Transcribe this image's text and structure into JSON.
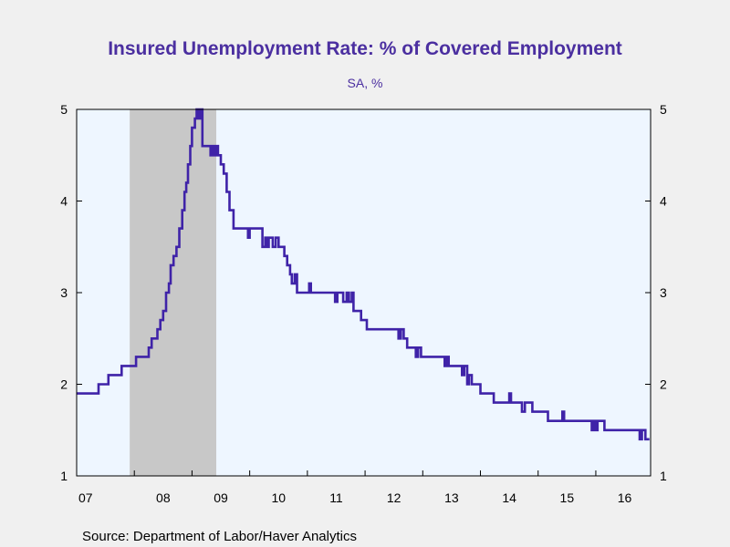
{
  "chart_data": {
    "type": "line",
    "title": "Insured Unemployment Rate: % of Covered Employment",
    "subtitle": "SA, %",
    "source": "Source:  Department of Labor/Haver Analytics",
    "colors": {
      "line": "#3f23a8",
      "plot_background": "#eef6ff",
      "recession": "#c8c8c8",
      "title": "#4b2fa0"
    },
    "xlim": [
      2007.0,
      2016.95
    ],
    "ylim": [
      1,
      5
    ],
    "x_ticks": [
      {
        "value": 2007,
        "label": "07"
      },
      {
        "value": 2008,
        "label": "08"
      },
      {
        "value": 2009,
        "label": "09"
      },
      {
        "value": 2010,
        "label": "10"
      },
      {
        "value": 2011,
        "label": "11"
      },
      {
        "value": 2012,
        "label": "12"
      },
      {
        "value": 2013,
        "label": "13"
      },
      {
        "value": 2014,
        "label": "14"
      },
      {
        "value": 2015,
        "label": "15"
      },
      {
        "value": 2016,
        "label": "16"
      }
    ],
    "y_ticks": [
      1,
      2,
      3,
      4,
      5
    ],
    "y_axis_sides": [
      "left",
      "right"
    ],
    "recession_shading": [
      {
        "start": 2007.92,
        "end": 2009.42
      }
    ],
    "series": [
      {
        "name": "",
        "points": [
          [
            2007.0,
            1.9
          ],
          [
            2007.35,
            1.9
          ],
          [
            2007.38,
            2.0
          ],
          [
            2007.52,
            2.0
          ],
          [
            2007.55,
            2.1
          ],
          [
            2007.75,
            2.1
          ],
          [
            2007.78,
            2.2
          ],
          [
            2008.0,
            2.2
          ],
          [
            2008.03,
            2.3
          ],
          [
            2008.2,
            2.3
          ],
          [
            2008.25,
            2.4
          ],
          [
            2008.3,
            2.5
          ],
          [
            2008.35,
            2.5
          ],
          [
            2008.4,
            2.6
          ],
          [
            2008.45,
            2.7
          ],
          [
            2008.5,
            2.8
          ],
          [
            2008.55,
            3.0
          ],
          [
            2008.6,
            3.1
          ],
          [
            2008.63,
            3.3
          ],
          [
            2008.68,
            3.4
          ],
          [
            2008.73,
            3.5
          ],
          [
            2008.78,
            3.7
          ],
          [
            2008.83,
            3.9
          ],
          [
            2008.87,
            4.1
          ],
          [
            2008.9,
            4.2
          ],
          [
            2008.93,
            4.4
          ],
          [
            2008.97,
            4.6
          ],
          [
            2009.0,
            4.8
          ],
          [
            2009.05,
            4.9
          ],
          [
            2009.08,
            5.0
          ],
          [
            2009.12,
            4.9
          ],
          [
            2009.15,
            5.0
          ],
          [
            2009.18,
            4.6
          ],
          [
            2009.3,
            4.6
          ],
          [
            2009.32,
            4.5
          ],
          [
            2009.35,
            4.6
          ],
          [
            2009.38,
            4.5
          ],
          [
            2009.42,
            4.6
          ],
          [
            2009.45,
            4.5
          ],
          [
            2009.5,
            4.4
          ],
          [
            2009.55,
            4.3
          ],
          [
            2009.6,
            4.1
          ],
          [
            2009.65,
            3.9
          ],
          [
            2009.72,
            3.7
          ],
          [
            2009.95,
            3.7
          ],
          [
            2009.97,
            3.6
          ],
          [
            2010.0,
            3.7
          ],
          [
            2010.2,
            3.7
          ],
          [
            2010.22,
            3.5
          ],
          [
            2010.27,
            3.6
          ],
          [
            2010.3,
            3.5
          ],
          [
            2010.33,
            3.6
          ],
          [
            2010.4,
            3.5
          ],
          [
            2010.45,
            3.6
          ],
          [
            2010.5,
            3.5
          ],
          [
            2010.55,
            3.5
          ],
          [
            2010.6,
            3.4
          ],
          [
            2010.65,
            3.3
          ],
          [
            2010.7,
            3.2
          ],
          [
            2010.73,
            3.1
          ],
          [
            2010.78,
            3.2
          ],
          [
            2010.82,
            3.0
          ],
          [
            2011.0,
            3.0
          ],
          [
            2011.03,
            3.1
          ],
          [
            2011.06,
            3.0
          ],
          [
            2011.45,
            3.0
          ],
          [
            2011.48,
            2.9
          ],
          [
            2011.52,
            3.0
          ],
          [
            2011.6,
            3.0
          ],
          [
            2011.62,
            2.9
          ],
          [
            2011.68,
            3.0
          ],
          [
            2011.72,
            2.9
          ],
          [
            2011.77,
            3.0
          ],
          [
            2011.8,
            2.8
          ],
          [
            2011.9,
            2.8
          ],
          [
            2011.93,
            2.7
          ],
          [
            2012.0,
            2.7
          ],
          [
            2012.03,
            2.6
          ],
          [
            2012.55,
            2.6
          ],
          [
            2012.58,
            2.5
          ],
          [
            2012.62,
            2.6
          ],
          [
            2012.67,
            2.5
          ],
          [
            2012.7,
            2.5
          ],
          [
            2012.73,
            2.4
          ],
          [
            2012.85,
            2.4
          ],
          [
            2012.88,
            2.3
          ],
          [
            2012.92,
            2.4
          ],
          [
            2012.97,
            2.3
          ],
          [
            2013.35,
            2.3
          ],
          [
            2013.38,
            2.2
          ],
          [
            2013.42,
            2.3
          ],
          [
            2013.45,
            2.2
          ],
          [
            2013.65,
            2.2
          ],
          [
            2013.68,
            2.1
          ],
          [
            2013.72,
            2.2
          ],
          [
            2013.77,
            2.0
          ],
          [
            2013.8,
            2.1
          ],
          [
            2013.85,
            2.0
          ],
          [
            2013.97,
            2.0
          ],
          [
            2014.0,
            1.9
          ],
          [
            2014.2,
            1.9
          ],
          [
            2014.23,
            1.8
          ],
          [
            2014.47,
            1.8
          ],
          [
            2014.5,
            1.9
          ],
          [
            2014.53,
            1.8
          ],
          [
            2014.68,
            1.8
          ],
          [
            2014.72,
            1.7
          ],
          [
            2014.77,
            1.8
          ],
          [
            2014.87,
            1.8
          ],
          [
            2014.9,
            1.7
          ],
          [
            2015.13,
            1.7
          ],
          [
            2015.17,
            1.6
          ],
          [
            2015.38,
            1.6
          ],
          [
            2015.42,
            1.7
          ],
          [
            2015.45,
            1.6
          ],
          [
            2015.9,
            1.6
          ],
          [
            2015.93,
            1.5
          ],
          [
            2015.97,
            1.6
          ],
          [
            2016.0,
            1.5
          ],
          [
            2016.03,
            1.6
          ],
          [
            2016.12,
            1.6
          ],
          [
            2016.15,
            1.5
          ],
          [
            2016.73,
            1.5
          ],
          [
            2016.76,
            1.4
          ],
          [
            2016.8,
            1.5
          ],
          [
            2016.83,
            1.5
          ],
          [
            2016.86,
            1.4
          ],
          [
            2016.93,
            1.4
          ]
        ]
      }
    ]
  }
}
